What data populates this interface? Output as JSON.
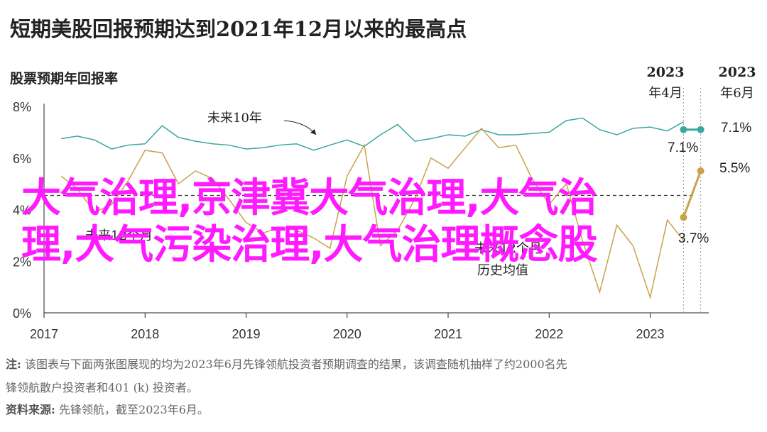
{
  "title": "短期美股回报预期达到2021年12月以来的最高点",
  "subtitle": "股票预期年回报率",
  "chart_data": {
    "type": "line",
    "x_ticks": [
      "2017",
      "2018",
      "2019",
      "2020",
      "2021",
      "2022",
      "2023"
    ],
    "y_ticks": [
      "0%",
      "2%",
      "4%",
      "6%",
      "8%"
    ],
    "ylim": [
      0,
      8
    ],
    "xlim": [
      2017.0,
      2023.58
    ],
    "historical_avg": 4.55,
    "series": [
      {
        "name": "未来10年",
        "color": "#3aa7a0",
        "x": [
          2017.17,
          2017.33,
          2017.5,
          2017.67,
          2017.83,
          2018.0,
          2018.17,
          2018.33,
          2018.5,
          2018.67,
          2018.83,
          2019.0,
          2019.17,
          2019.33,
          2019.5,
          2019.67,
          2019.83,
          2020.0,
          2020.17,
          2020.33,
          2020.5,
          2020.67,
          2020.83,
          2021.0,
          2021.17,
          2021.33,
          2021.5,
          2021.67,
          2021.83,
          2022.0,
          2022.17,
          2022.33,
          2022.5,
          2022.67,
          2022.83,
          2023.0,
          2023.17,
          2023.33
        ],
        "values": [
          6.75,
          6.85,
          6.7,
          6.35,
          6.5,
          6.55,
          7.25,
          6.8,
          6.65,
          6.55,
          6.5,
          6.35,
          6.4,
          6.5,
          6.55,
          6.3,
          6.5,
          6.7,
          6.45,
          6.9,
          7.3,
          6.65,
          6.75,
          6.9,
          6.85,
          7.1,
          6.9,
          6.9,
          6.95,
          7.0,
          7.45,
          7.55,
          7.1,
          6.9,
          7.15,
          7.2,
          7.05,
          7.4
        ]
      },
      {
        "name": "未来12个月",
        "color": "#c9a24a",
        "x": [
          2017.17,
          2017.33,
          2017.5,
          2017.67,
          2017.83,
          2018.0,
          2018.17,
          2018.33,
          2018.5,
          2018.67,
          2018.83,
          2019.0,
          2019.17,
          2019.33,
          2019.5,
          2019.67,
          2019.83,
          2020.0,
          2020.17,
          2020.33,
          2020.5,
          2020.67,
          2020.83,
          2021.0,
          2021.17,
          2021.33,
          2021.5,
          2021.67,
          2021.83,
          2022.0,
          2022.17,
          2022.33,
          2022.5,
          2022.67,
          2022.83,
          2023.0,
          2023.17,
          2023.33
        ],
        "values": [
          5.3,
          4.8,
          3.9,
          4.2,
          5.1,
          6.3,
          6.2,
          5.0,
          5.5,
          5.2,
          4.4,
          3.5,
          3.1,
          3.3,
          3.2,
          2.9,
          2.5,
          5.3,
          6.5,
          2.6,
          3.2,
          4.4,
          6.0,
          5.6,
          6.4,
          7.15,
          6.4,
          6.5,
          5.2,
          4.2,
          5.0,
          2.8,
          0.8,
          3.4,
          2.6,
          0.6,
          3.6,
          2.8
        ]
      }
    ],
    "endpoints": [
      {
        "period": "2023年4月",
        "series": "未来10年",
        "value": 7.1,
        "label": "7.1%"
      },
      {
        "period": "2023年6月",
        "series": "未来10年",
        "value": 7.1,
        "label": "7.1%"
      },
      {
        "period": "2023年4月",
        "series": "未来12个月",
        "value": 3.7,
        "label": "3.7%"
      },
      {
        "period": "2023年6月",
        "series": "未来12个月",
        "value": 5.5,
        "label": "5.5%"
      }
    ],
    "annotations": {
      "ten_year": "未来10年",
      "twelve_month": "未来12个月",
      "hist_line1": "未来12个月",
      "hist_line2": "历史均值",
      "period1_year": "2023",
      "period1_month": "年4月",
      "period2_year": "2023",
      "period2_month": "年6月"
    },
    "grid": false
  },
  "overlay": {
    "line1": "大气治理,京津冀大气治理,大气治",
    "line2": "理,大气污染治理,大气治理概念股"
  },
  "notes": {
    "note_label": "注:",
    "note_text1": "该图表与下面两张图展现的均为2023年6月先锋领航投资者预期调查的结果，该调查随机抽样了约2000名先",
    "note_text2": "锋领航散户投资者和401 (k) 投资者。",
    "source_label": "资料来源:",
    "source_text": "先锋领航，截至2023年6月。"
  }
}
